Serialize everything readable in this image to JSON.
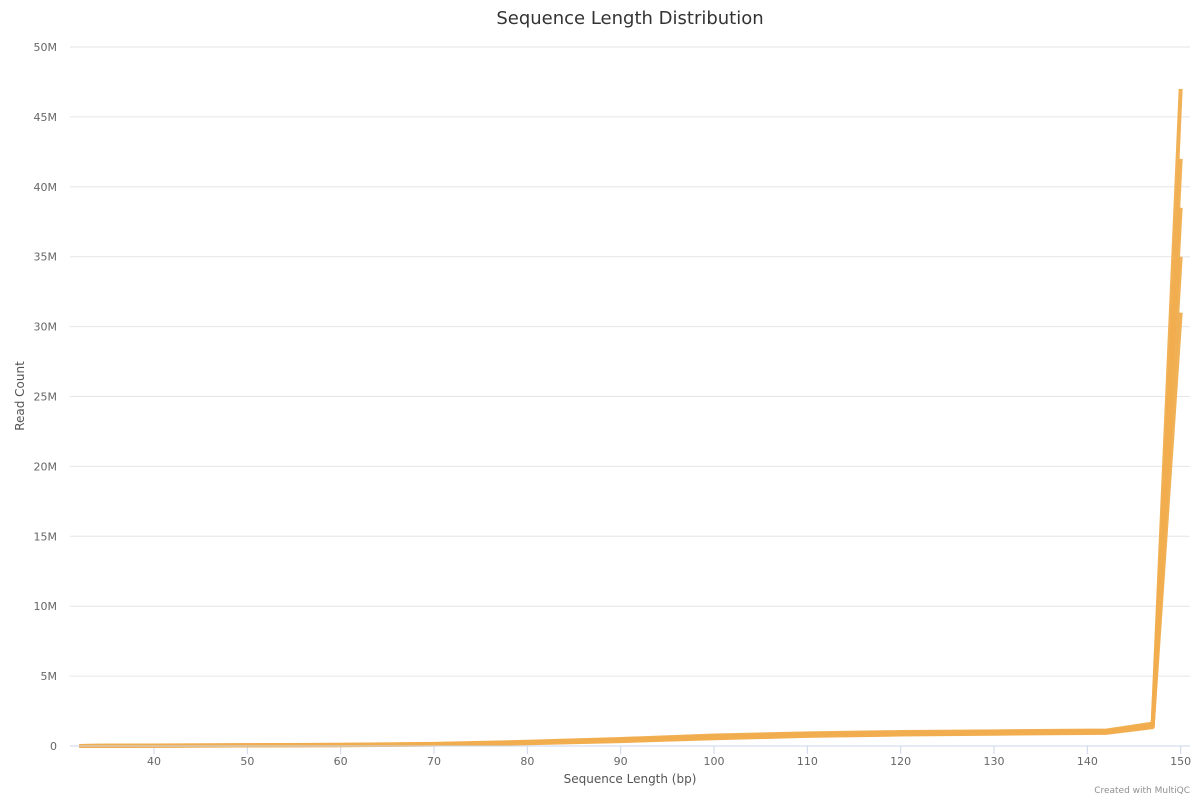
{
  "chart_data": {
    "type": "line",
    "title": "Sequence Length Distribution",
    "xlabel": "Sequence Length (bp)",
    "ylabel": "Read Count",
    "xlim": [
      31,
      151
    ],
    "ylim": [
      0,
      50000000
    ],
    "x_ticks": [
      40,
      50,
      60,
      70,
      80,
      90,
      100,
      110,
      120,
      130,
      140,
      150
    ],
    "y_ticks": [
      0,
      5000000,
      10000000,
      15000000,
      20000000,
      25000000,
      30000000,
      35000000,
      40000000,
      45000000,
      50000000
    ],
    "y_tick_labels": [
      "0",
      "5M",
      "10M",
      "15M",
      "20M",
      "25M",
      "30M",
      "35M",
      "40M",
      "45M",
      "50M"
    ],
    "grid": true,
    "legend": "none",
    "series_color": "#f0ad4e",
    "series": [
      {
        "x": [
          32,
          35,
          45,
          60,
          70,
          80,
          90,
          100,
          110,
          120,
          130,
          140,
          142,
          147,
          150
        ],
        "values": [
          0,
          20000,
          50000,
          90000,
          150000,
          300000,
          500000,
          750000,
          900000,
          1000000,
          1050000,
          1100000,
          1100000,
          1600000,
          47000000
        ]
      },
      {
        "x": [
          32,
          35,
          45,
          60,
          70,
          80,
          90,
          100,
          110,
          120,
          130,
          140,
          142,
          147,
          150
        ],
        "values": [
          0,
          15000,
          40000,
          80000,
          130000,
          270000,
          450000,
          680000,
          840000,
          930000,
          990000,
          1040000,
          1050000,
          1500000,
          42000000
        ]
      },
      {
        "x": [
          32,
          35,
          45,
          60,
          70,
          80,
          90,
          100,
          110,
          120,
          130,
          140,
          142,
          147,
          150
        ],
        "values": [
          0,
          12000,
          35000,
          70000,
          120000,
          240000,
          400000,
          620000,
          790000,
          880000,
          940000,
          990000,
          1000000,
          1450000,
          38500000
        ]
      },
      {
        "x": [
          32,
          35,
          45,
          60,
          70,
          80,
          90,
          100,
          110,
          120,
          130,
          140,
          142,
          147,
          150
        ],
        "values": [
          0,
          10000,
          30000,
          60000,
          110000,
          220000,
          370000,
          580000,
          750000,
          850000,
          910000,
          960000,
          970000,
          1400000,
          35000000
        ]
      },
      {
        "x": [
          32,
          35,
          45,
          60,
          70,
          80,
          90,
          100,
          110,
          120,
          130,
          140,
          142,
          147,
          150
        ],
        "values": [
          0,
          8000,
          25000,
          55000,
          100000,
          200000,
          350000,
          550000,
          720000,
          820000,
          880000,
          930000,
          940000,
          1350000,
          31000000
        ]
      }
    ],
    "credit": "Created with MultiQC"
  }
}
